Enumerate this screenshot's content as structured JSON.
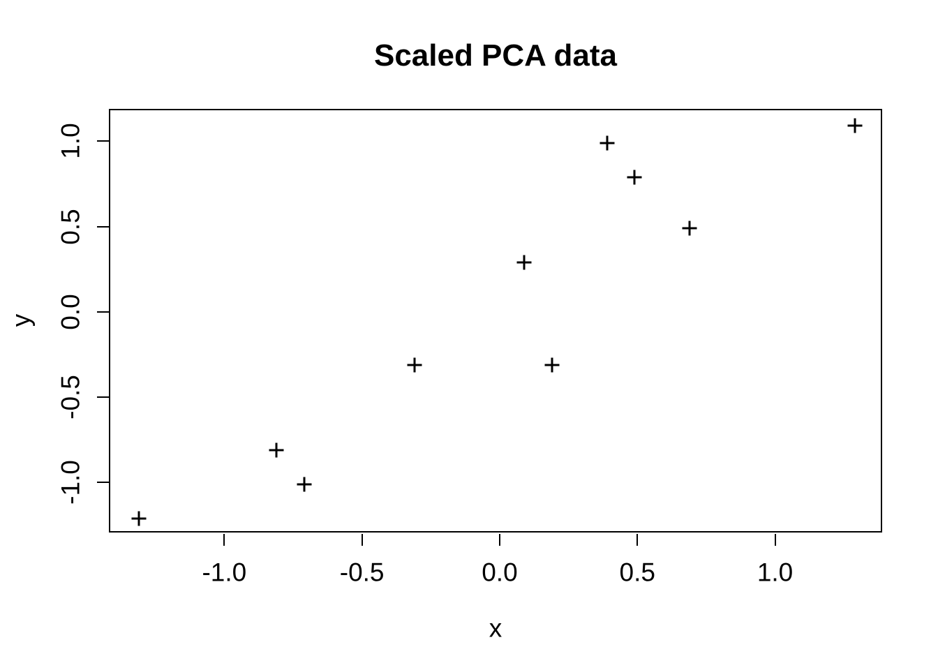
{
  "chart_data": {
    "type": "scatter",
    "title": "Scaled PCA data",
    "xlabel": "x",
    "ylabel": "y",
    "marker": "plus",
    "grid": false,
    "legend": null,
    "xlim": [
      -1.414,
      1.394
    ],
    "ylim": [
      -1.302,
      1.182
    ],
    "x_ticks": [
      {
        "value": -1.0,
        "label": "-1.0"
      },
      {
        "value": -0.5,
        "label": "-0.5"
      },
      {
        "value": 0.0,
        "label": "0.0"
      },
      {
        "value": 0.5,
        "label": "0.5"
      },
      {
        "value": 1.0,
        "label": "1.0"
      }
    ],
    "y_ticks": [
      {
        "value": -1.0,
        "label": "-1.0"
      },
      {
        "value": -0.5,
        "label": "-0.5"
      },
      {
        "value": 0.0,
        "label": "0.0"
      },
      {
        "value": 0.5,
        "label": "0.5"
      },
      {
        "value": 1.0,
        "label": "1.0"
      }
    ],
    "points": [
      {
        "x": 0.69,
        "y": 0.49
      },
      {
        "x": -1.31,
        "y": -1.21
      },
      {
        "x": 0.39,
        "y": 0.99
      },
      {
        "x": 0.09,
        "y": 0.29
      },
      {
        "x": 1.29,
        "y": 1.09
      },
      {
        "x": 0.49,
        "y": 0.79
      },
      {
        "x": 0.19,
        "y": -0.31
      },
      {
        "x": -0.81,
        "y": -0.81
      },
      {
        "x": -0.31,
        "y": -0.31
      },
      {
        "x": -0.71,
        "y": -1.01
      }
    ],
    "colors": {
      "foreground": "#000000",
      "background": "#ffffff"
    }
  }
}
